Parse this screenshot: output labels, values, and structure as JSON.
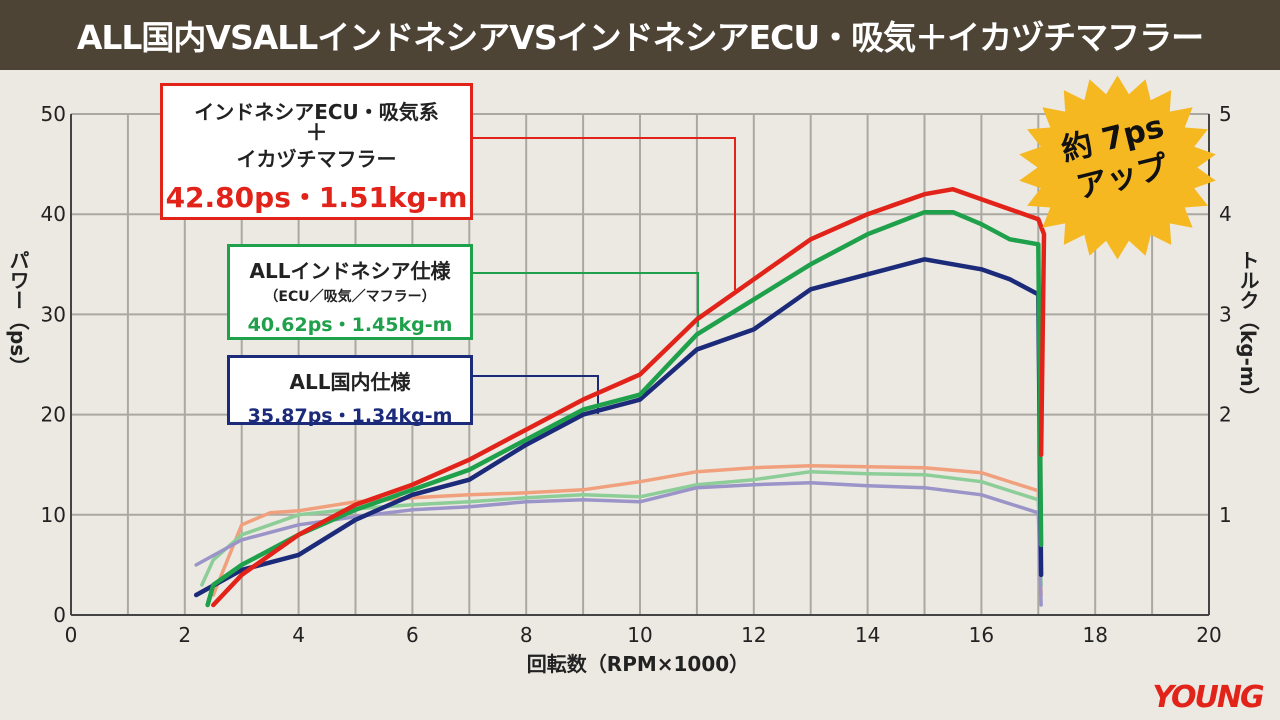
{
  "title": "ALL国内VSALLインドネシアVSインドネシアECU・吸気＋イカヅチマフラー",
  "chart_data": {
    "type": "line",
    "xlabel": "回転数（RPM×1000）",
    "ylabel_left": "パワー（ps）",
    "ylabel_right": "トルク（kg-m）",
    "xlim": [
      0,
      20
    ],
    "ylim_left": [
      0,
      50
    ],
    "ylim_right": [
      0,
      5
    ],
    "x_ticks": [
      "0",
      "2",
      "4",
      "6",
      "8",
      "10",
      "12",
      "14",
      "16",
      "18",
      "20"
    ],
    "y_ticks_left": [
      "0",
      "10",
      "20",
      "30",
      "40",
      "50"
    ],
    "y_ticks_right": [
      "1",
      "2",
      "3",
      "4",
      "5"
    ],
    "grid": true,
    "series": [
      {
        "key": "red_power",
        "color": "#e2231a",
        "axis": "left",
        "points": [
          [
            2.5,
            1
          ],
          [
            3,
            4
          ],
          [
            4,
            8
          ],
          [
            5,
            11
          ],
          [
            6,
            13
          ],
          [
            7,
            15.5
          ],
          [
            8,
            18.5
          ],
          [
            9,
            21.5
          ],
          [
            10,
            24
          ],
          [
            11,
            29.5
          ],
          [
            12,
            33.5
          ],
          [
            13,
            37.5
          ],
          [
            14,
            40
          ],
          [
            15,
            42
          ],
          [
            15.5,
            42.5
          ],
          [
            16,
            41.5
          ],
          [
            16.5,
            40.5
          ],
          [
            17,
            39.5
          ],
          [
            17.1,
            38
          ],
          [
            17.05,
            16
          ]
        ]
      },
      {
        "key": "green_power",
        "color": "#1fa04b",
        "axis": "left",
        "points": [
          [
            2.4,
            1
          ],
          [
            2.5,
            3
          ],
          [
            3,
            5
          ],
          [
            4,
            8
          ],
          [
            5,
            10.5
          ],
          [
            6,
            12.5
          ],
          [
            7,
            14.5
          ],
          [
            8,
            17.5
          ],
          [
            9,
            20.5
          ],
          [
            10,
            22
          ],
          [
            11,
            28
          ],
          [
            12,
            31.5
          ],
          [
            13,
            35
          ],
          [
            14,
            38
          ],
          [
            15,
            40.2
          ],
          [
            15.5,
            40.2
          ],
          [
            16,
            39
          ],
          [
            16.5,
            37.5
          ],
          [
            17,
            37
          ],
          [
            17.05,
            7
          ]
        ]
      },
      {
        "key": "navy_power",
        "color": "#1c2a7a",
        "axis": "left",
        "points": [
          [
            2.2,
            2
          ],
          [
            3,
            4.5
          ],
          [
            4,
            6
          ],
          [
            5,
            9.5
          ],
          [
            6,
            12
          ],
          [
            7,
            13.5
          ],
          [
            8,
            17
          ],
          [
            9,
            20
          ],
          [
            10,
            21.5
          ],
          [
            11,
            26.5
          ],
          [
            12,
            28.5
          ],
          [
            13,
            32.5
          ],
          [
            14,
            34
          ],
          [
            15,
            35.5
          ],
          [
            15.5,
            35
          ],
          [
            16,
            34.5
          ],
          [
            16.5,
            33.5
          ],
          [
            17,
            32
          ],
          [
            17.05,
            4
          ]
        ]
      },
      {
        "key": "red_torque",
        "color": "#f0a07c",
        "axis": "right",
        "points": [
          [
            2.5,
            0.2
          ],
          [
            3,
            0.9
          ],
          [
            3.5,
            1.02
          ],
          [
            4,
            1.04
          ],
          [
            5,
            1.13
          ],
          [
            6,
            1.17
          ],
          [
            7,
            1.2
          ],
          [
            8,
            1.22
          ],
          [
            9,
            1.25
          ],
          [
            10,
            1.33
          ],
          [
            11,
            1.43
          ],
          [
            12,
            1.47
          ],
          [
            13,
            1.49
          ],
          [
            14,
            1.48
          ],
          [
            15,
            1.47
          ],
          [
            16,
            1.42
          ],
          [
            17,
            1.24
          ],
          [
            17.05,
            0.2
          ]
        ]
      },
      {
        "key": "green_torque",
        "color": "#8ccd98",
        "axis": "right",
        "points": [
          [
            2.3,
            0.3
          ],
          [
            2.5,
            0.55
          ],
          [
            3,
            0.8
          ],
          [
            4,
            1.0
          ],
          [
            5,
            1.06
          ],
          [
            6,
            1.1
          ],
          [
            7,
            1.13
          ],
          [
            8,
            1.17
          ],
          [
            9,
            1.2
          ],
          [
            10,
            1.18
          ],
          [
            11,
            1.3
          ],
          [
            12,
            1.35
          ],
          [
            13,
            1.43
          ],
          [
            14,
            1.41
          ],
          [
            15,
            1.4
          ],
          [
            16,
            1.33
          ],
          [
            17,
            1.15
          ],
          [
            17.05,
            0.3
          ]
        ]
      },
      {
        "key": "navy_torque",
        "color": "#9b94c8",
        "axis": "right",
        "points": [
          [
            2.2,
            0.5
          ],
          [
            3,
            0.75
          ],
          [
            4,
            0.9
          ],
          [
            5,
            0.98
          ],
          [
            6,
            1.05
          ],
          [
            7,
            1.08
          ],
          [
            8,
            1.13
          ],
          [
            9,
            1.15
          ],
          [
            10,
            1.13
          ],
          [
            11,
            1.27
          ],
          [
            12,
            1.3
          ],
          [
            13,
            1.32
          ],
          [
            14,
            1.29
          ],
          [
            15,
            1.27
          ],
          [
            16,
            1.2
          ],
          [
            17,
            1.02
          ],
          [
            17.05,
            0.1
          ]
        ]
      }
    ]
  },
  "callouts": {
    "red": {
      "line1": "インドネシアECU・吸気系",
      "line2": "＋",
      "line3": "イカヅチマフラー",
      "value": "42.80ps・1.51kg-m"
    },
    "green": {
      "line1": "ALLインドネシア仕様",
      "line2": "（ECU／吸気／マフラー）",
      "value": "40.62ps・1.45kg-m"
    },
    "navy": {
      "line1": "ALL国内仕様",
      "value": "35.87ps・1.34kg-m"
    }
  },
  "badge": {
    "line1": "約 7ps",
    "line2": "アップ",
    "color": "#f5b820"
  },
  "logo": {
    "text": "YOUNG"
  }
}
